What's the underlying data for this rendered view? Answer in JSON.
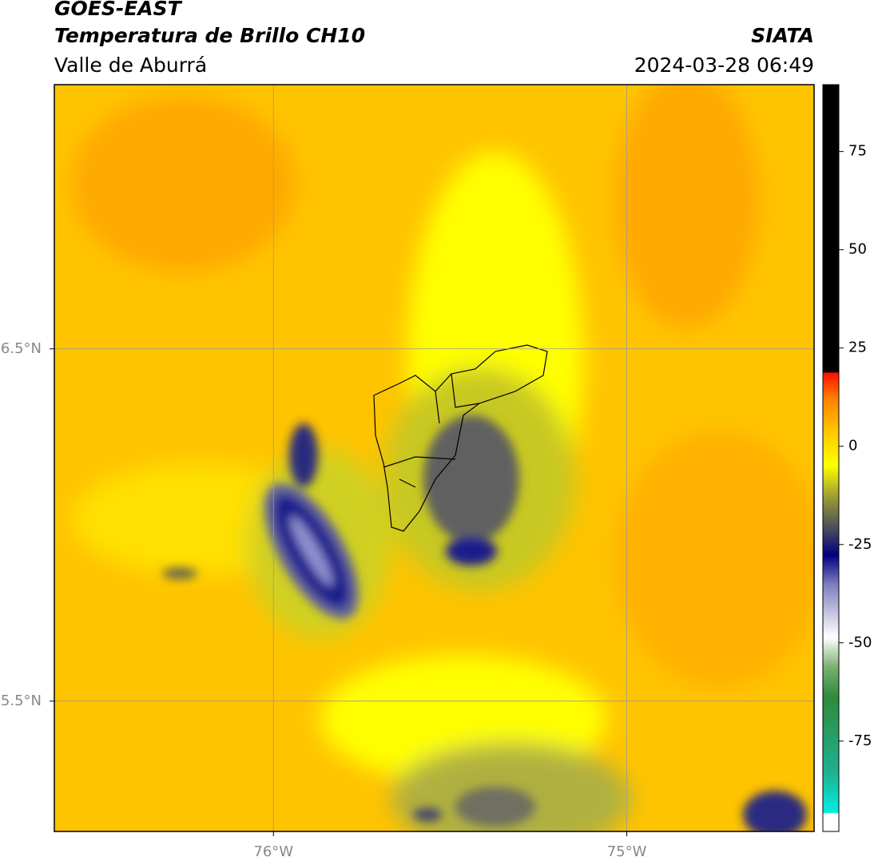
{
  "chart_data": {
    "type": "map",
    "title": "GOES-EAST",
    "subtitle": "Temperatura de Brillo CH10",
    "region": "Valle de Aburrá",
    "source": "SIATA",
    "timestamp": "2024-03-28 06:49",
    "xlim": [
      -76.62,
      -74.47
    ],
    "ylim": [
      5.13,
      7.25
    ],
    "xticks": [
      {
        "value": -76,
        "label": "76°W"
      },
      {
        "value": -75,
        "label": "75°W"
      }
    ],
    "yticks": [
      {
        "value": 6.5,
        "label": "6.5°N"
      },
      {
        "value": 5.5,
        "label": "5.5°N"
      }
    ],
    "grid": true,
    "colorbar": {
      "clim": [
        -98,
        92
      ],
      "ticks": [
        75,
        50,
        25,
        0,
        -25,
        -50,
        -75
      ]
    }
  }
}
